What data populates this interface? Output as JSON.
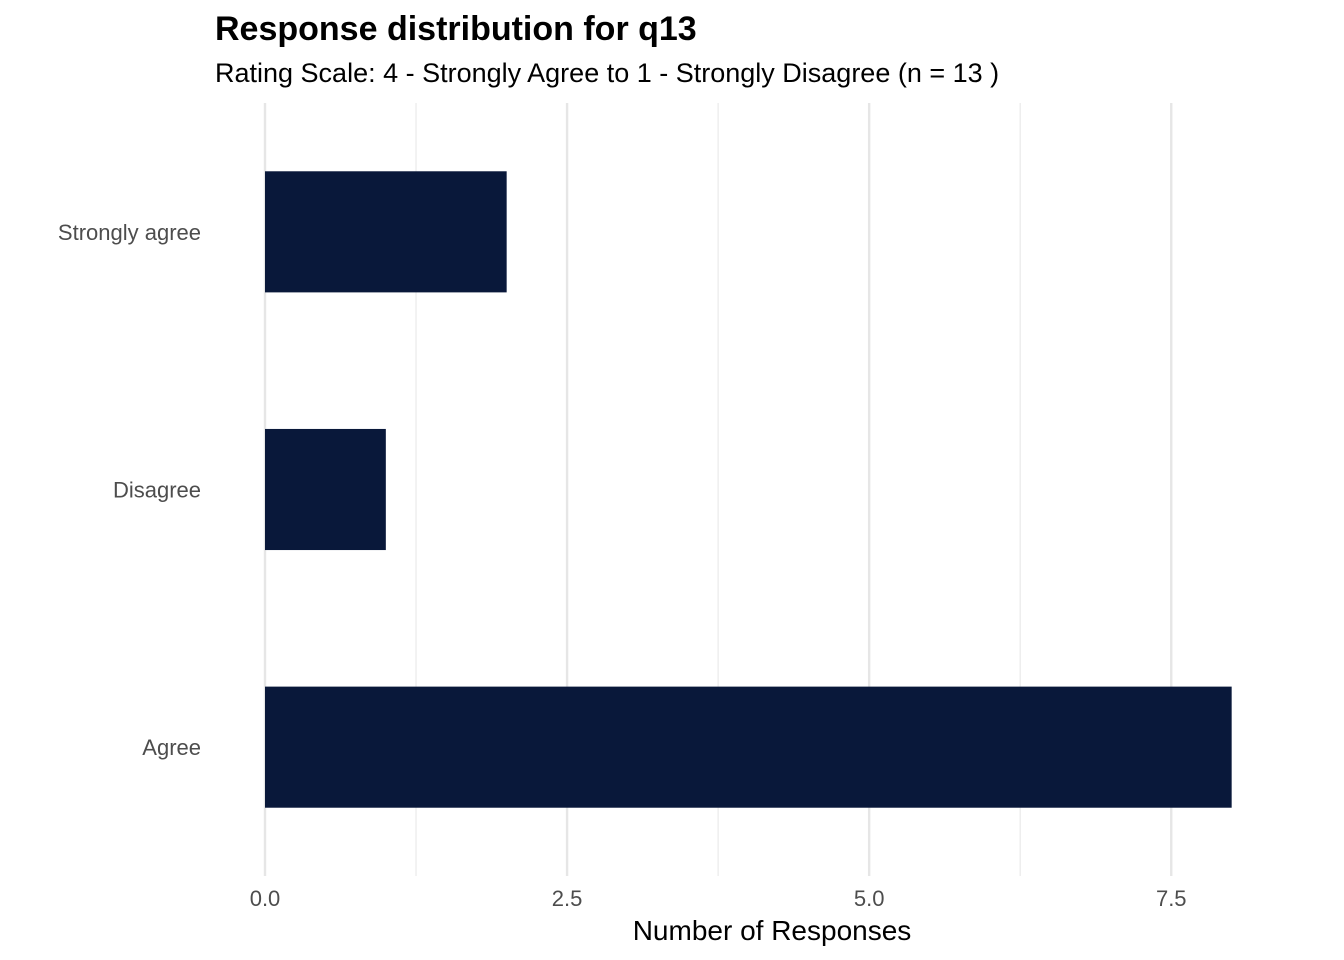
{
  "chart_data": {
    "type": "bar",
    "orientation": "horizontal",
    "title": "Response distribution for q13",
    "subtitle": "Rating Scale: 4 - Strongly Agree to 1 - Strongly Disagree (n = 13 )",
    "xlabel": "Number of Responses",
    "ylabel": "",
    "categories": [
      "Strongly agree",
      "Disagree",
      "Agree"
    ],
    "values": [
      2,
      1,
      8
    ],
    "xlim": [
      0,
      8.4
    ],
    "xticks": [
      0,
      2.5,
      5,
      7.5
    ],
    "xtick_labels": [
      "0.0",
      "2.5",
      "5.0",
      "7.5"
    ],
    "grid": true,
    "legend": "none",
    "bar_color": "#09183a"
  }
}
